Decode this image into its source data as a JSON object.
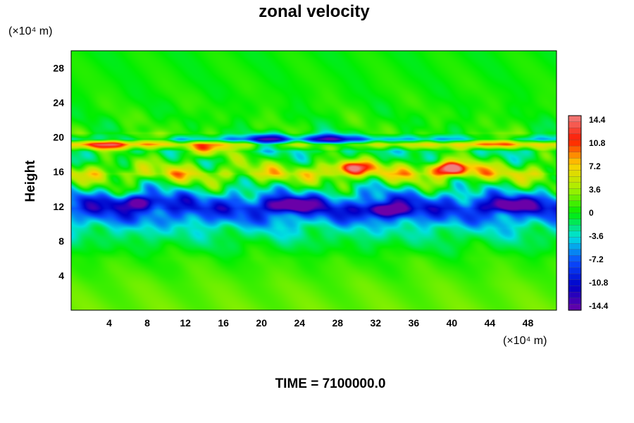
{
  "chart_data": {
    "type": "heatmap",
    "title": "zonal velocity",
    "ylabel": "Height",
    "y_unit_label": "(×10⁴ m)",
    "x_unit_label": "(×10⁴ m)",
    "footer": "TIME = 7100000.0",
    "xlim": [
      0,
      51
    ],
    "ylim": [
      0,
      30
    ],
    "x_ticks": [
      4,
      8,
      12,
      16,
      20,
      24,
      28,
      32,
      36,
      40,
      44,
      48
    ],
    "y_ticks": [
      4,
      8,
      12,
      16,
      20,
      24,
      28
    ],
    "colorbar": {
      "vmin": -14.4,
      "vmax": 14.4,
      "ticks": [
        14.4,
        10.8,
        7.2,
        3.6,
        0,
        -3.6,
        -7.2,
        -10.8,
        -14.4
      ],
      "colors": {
        "-14.4": "#6a00a8",
        "-10.8": "#0000c8",
        "-7.2": "#0a4cff",
        "-3.6": "#00e0e0",
        "0": "#00ee00",
        "3.6": "#a8f000",
        "7.2": "#ffd000",
        "10.8": "#ff1a00",
        "14.4": "#f08080"
      }
    },
    "height_profile": [
      {
        "y": 0,
        "value": 2.2
      },
      {
        "y": 3,
        "value": 1.8
      },
      {
        "y": 6,
        "value": 0.8
      },
      {
        "y": 8,
        "value": -1.2
      },
      {
        "y": 9.5,
        "value": -3.2
      },
      {
        "y": 10.5,
        "value": -6.0
      },
      {
        "y": 11.8,
        "value": -9.0
      },
      {
        "y": 12.8,
        "value": -7.0
      },
      {
        "y": 14.2,
        "value": -1.5
      },
      {
        "y": 15.8,
        "value": 4.8
      },
      {
        "y": 17.2,
        "value": 0.8
      },
      {
        "y": 18.4,
        "value": -1.5
      },
      {
        "y": 19.2,
        "value": 5.0
      },
      {
        "y": 19.8,
        "value": -5.0
      },
      {
        "y": 20.5,
        "value": 0.5
      },
      {
        "y": 24,
        "value": 0.4
      },
      {
        "y": 30,
        "value": 0.1
      }
    ],
    "features": [
      {
        "x": 29.5,
        "y": 16.5,
        "value": 11
      },
      {
        "x": 39.8,
        "y": 16.4,
        "value": 14
      },
      {
        "x": 23,
        "y": 12.2,
        "value": -12
      },
      {
        "x": 33,
        "y": 11.6,
        "value": -11
      },
      {
        "x": 44,
        "y": 19.5,
        "value": 9
      },
      {
        "x": 3.5,
        "y": 19.2,
        "value": 8
      },
      {
        "x": 8,
        "y": 19.7,
        "value": 7
      },
      {
        "x": 14,
        "y": 18.5,
        "value": 8
      },
      {
        "x": 27,
        "y": 19.7,
        "value": -10
      },
      {
        "x": 21,
        "y": 19.8,
        "value": -8
      },
      {
        "x": 7,
        "y": 12.5,
        "value": -9
      },
      {
        "x": 46,
        "y": 12.2,
        "value": -10
      }
    ]
  }
}
